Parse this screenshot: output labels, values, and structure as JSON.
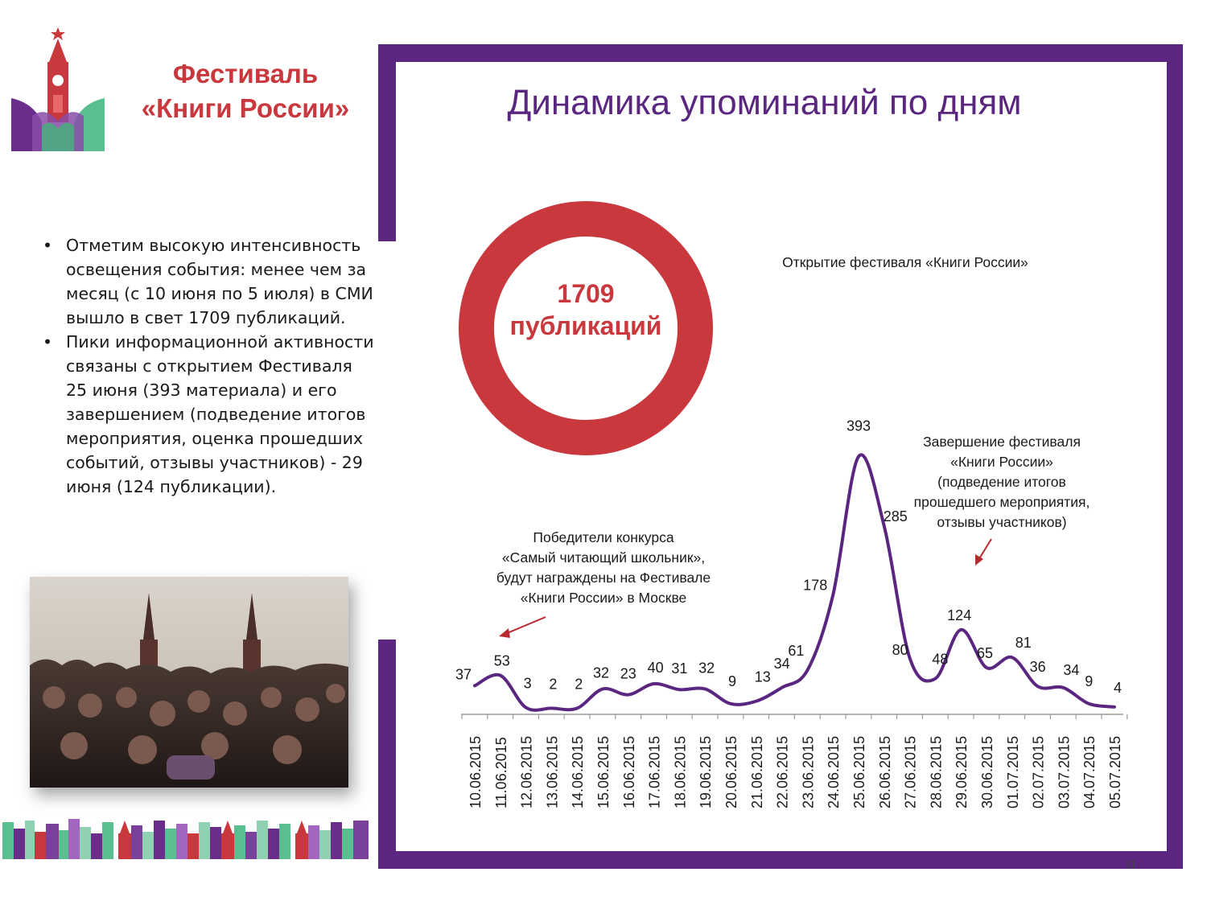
{
  "header": {
    "festival_title_line1": "Фестиваль",
    "festival_title_line2": "«Книги России»"
  },
  "main": {
    "title": "Динамика  упоминаний  по дням",
    "donut": {
      "number": "1709",
      "label": "публикаций",
      "color": "#c9383d"
    }
  },
  "sidebar": {
    "bullets": [
      "Отметим  высокую  интенсивность  освещения  события: менее чем за месяц (с 10 июня  по 5 июля)  в СМИ вышло  в свет 1709 публикаций.",
      "Пики  информационной активности   связаны с открытием Фестиваля  25 июня (393 материала)  и его завершением  (подведение итогов мероприятия,  оценка прошедших  событий,  отзывы участников)  - 29 июня  (124 публикации)."
    ]
  },
  "annotations": {
    "opening": "Открытие  фестиваля  «Книги России»",
    "winners": [
      "Победители   конкурса",
      "«Самый  читающий  школьник»,",
      "будут  награждены  на Фестивале",
      "«Книги России» в Москве"
    ],
    "closing": [
      "Завершение  фестиваля",
      "«Книги России»",
      "(подведение  итогов",
      "прошедшего мероприятия,",
      "отзывы  участников)"
    ]
  },
  "page_number": "11",
  "colors": {
    "accent_purple": "#5a2680",
    "accent_red": "#c9383d",
    "arrow_red": "#b8282e"
  },
  "icons": [
    "kremlin-tower-logo",
    "book-icon",
    "arrow-icon"
  ],
  "chart_data": {
    "type": "line",
    "title": "Динамика  упоминаний  по дням",
    "xlabel": "",
    "ylabel": "",
    "categories": [
      "10.06.2015",
      "11.06.2015",
      "12.06.2015",
      "13.06.2015",
      "14.06.2015",
      "15.06.2015",
      "16.06.2015",
      "17.06.2015",
      "18.06.2015",
      "19.06.2015",
      "20.06.2015",
      "21.06.2015",
      "22.06.2015",
      "23.06.2015",
      "24.06.2015",
      "25.06.2015",
      "26.06.2015",
      "27.06.2015",
      "28.06.2015",
      "29.06.2015",
      "30.06.2015",
      "01.07.2015",
      "02.07.2015",
      "03.07.2015",
      "04.07.2015",
      "05.07.2015"
    ],
    "values": [
      37,
      53,
      3,
      2,
      2,
      32,
      23,
      40,
      31,
      32,
      9,
      13,
      34,
      61,
      178,
      393,
      285,
      80,
      48,
      124,
      65,
      81,
      36,
      34,
      9,
      4
    ],
    "ylim": [
      0,
      400
    ],
    "grid": false,
    "legend": "none",
    "data_labels": true,
    "line_color": "#5a2680"
  }
}
